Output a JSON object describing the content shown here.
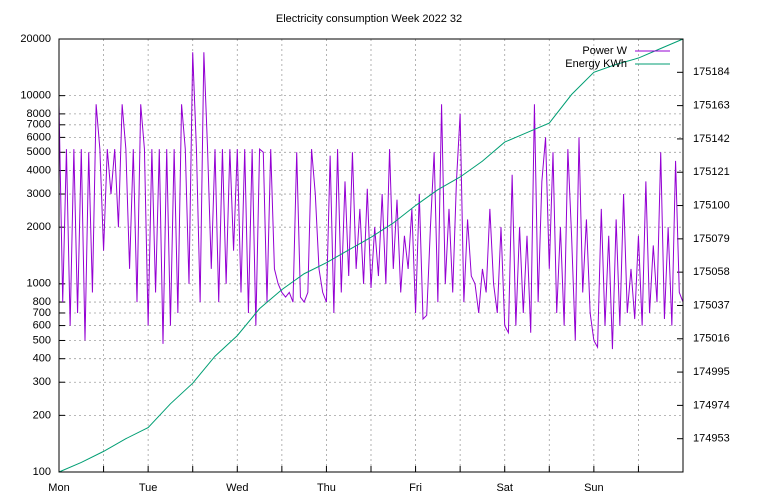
{
  "chart_data": {
    "type": "line",
    "title": "Electricity consumption Week 2022 32",
    "xlim": [
      0,
      168
    ],
    "xticks": [
      {
        "value": 0,
        "label": "Mon"
      },
      {
        "value": 24,
        "label": "Tue"
      },
      {
        "value": 48,
        "label": "Wed"
      },
      {
        "value": 72,
        "label": "Thu"
      },
      {
        "value": 96,
        "label": "Fri"
      },
      {
        "value": 120,
        "label": "Sat"
      },
      {
        "value": 144,
        "label": "Sun"
      }
    ],
    "xminorticks": [
      12,
      36,
      60,
      84,
      108,
      132,
      156
    ],
    "ylim": [
      100,
      20000
    ],
    "log_scale": true,
    "yticks": [
      100,
      200,
      300,
      400,
      500,
      600,
      700,
      800,
      1000,
      2000,
      3000,
      4000,
      5000,
      6000,
      7000,
      8000,
      10000,
      20000
    ],
    "y2lim": [
      174932,
      175205
    ],
    "y2ticks": [
      174953,
      174974,
      174995,
      175016,
      175037,
      175058,
      175079,
      175100,
      175121,
      175142,
      175163,
      175184
    ],
    "grid": true,
    "legend": "top-right",
    "series": [
      {
        "name": "Power W",
        "color": "#9400d3",
        "axis": "y",
        "x": [
          0,
          1,
          2,
          3,
          4,
          5,
          6,
          7,
          8,
          9,
          10,
          11,
          12,
          13,
          14,
          15,
          16,
          17,
          18,
          19,
          20,
          21,
          22,
          23,
          24,
          25,
          26,
          27,
          28,
          29,
          30,
          31,
          32,
          33,
          34,
          35,
          36,
          37,
          38,
          39,
          40,
          41,
          42,
          43,
          44,
          45,
          46,
          47,
          48,
          49,
          50,
          51,
          52,
          53,
          54,
          55,
          56,
          57,
          58,
          59,
          60,
          61,
          62,
          63,
          64,
          65,
          66,
          67,
          68,
          69,
          70,
          71,
          72,
          73,
          74,
          75,
          76,
          77,
          78,
          79,
          80,
          81,
          82,
          83,
          84,
          85,
          86,
          87,
          88,
          89,
          90,
          91,
          92,
          93,
          94,
          95,
          96,
          97,
          98,
          99,
          100,
          101,
          102,
          103,
          104,
          105,
          106,
          107,
          108,
          109,
          110,
          111,
          112,
          113,
          114,
          115,
          116,
          117,
          118,
          119,
          120,
          121,
          122,
          123,
          124,
          125,
          126,
          127,
          128,
          129,
          130,
          131,
          132,
          133,
          134,
          135,
          136,
          137,
          138,
          139,
          140,
          141,
          142,
          143,
          144,
          145,
          146,
          147,
          148,
          149,
          150,
          151,
          152,
          153,
          154,
          155,
          156,
          157,
          158,
          159,
          160,
          161,
          162,
          163,
          164,
          165,
          166,
          167,
          168
        ],
        "values": [
          9000,
          800,
          5200,
          600,
          5200,
          700,
          5200,
          500,
          5000,
          900,
          9000,
          5200,
          1500,
          5200,
          3000,
          5200,
          2000,
          9000,
          5200,
          1200,
          5200,
          800,
          9000,
          5200,
          600,
          5200,
          900,
          5200,
          480,
          5200,
          600,
          5200,
          700,
          9000,
          5200,
          1000,
          17000,
          5200,
          800,
          17000,
          5200,
          1200,
          5200,
          800,
          5200,
          1000,
          5200,
          1500,
          5200,
          900,
          5200,
          700,
          5200,
          600,
          5200,
          5000,
          800,
          5200,
          1200,
          1000,
          900,
          850,
          900,
          800,
          5000,
          850,
          800,
          900,
          5200,
          3000,
          1200,
          900,
          800,
          4800,
          700,
          5200,
          900,
          3500,
          1100,
          5000,
          1200,
          2500,
          1000,
          3200,
          950,
          2000,
          1100,
          3000,
          1000,
          5200,
          1200,
          2800,
          900,
          1800,
          1200,
          2500,
          700,
          3000,
          650,
          680,
          2000,
          5000,
          800,
          9000,
          1000,
          2500,
          900,
          3500,
          8000,
          800,
          2200,
          1100,
          1000,
          700,
          1200,
          900,
          2500,
          1000,
          700,
          2000,
          600,
          550,
          3800,
          600,
          2000,
          700,
          1800,
          550,
          9000,
          800,
          3500,
          6000,
          1200,
          5000,
          700,
          2000,
          600,
          5200,
          1800,
          500,
          6000,
          900,
          2200,
          700,
          500,
          460,
          2500,
          600,
          1800,
          450,
          2200,
          600,
          3000,
          700,
          1200,
          650,
          1800,
          600,
          3500,
          700,
          1600,
          800,
          5000,
          650,
          2000,
          600,
          4500,
          900,
          800
        ]
      },
      {
        "name": "Energy KWh",
        "color": "#009e73",
        "axis": "y2",
        "x": [
          0,
          6,
          12,
          18,
          24,
          30,
          36,
          42,
          48,
          54,
          60,
          66,
          72,
          78,
          84,
          90,
          96,
          102,
          108,
          114,
          120,
          126,
          132,
          138,
          144,
          150,
          156,
          162,
          168
        ],
        "values": [
          174932,
          174938,
          174945,
          174953,
          174960,
          174975,
          174988,
          175005,
          175018,
          175035,
          175047,
          175057,
          175064,
          175072,
          175080,
          175089,
          175100,
          175110,
          175118,
          175128,
          175140,
          175146,
          175152,
          175170,
          175184,
          175189,
          175193,
          175199,
          175205
        ]
      }
    ]
  }
}
